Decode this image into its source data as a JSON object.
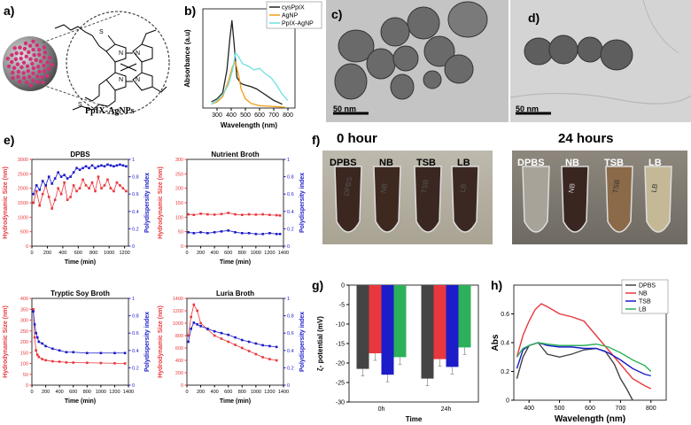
{
  "panel_labels": {
    "a": "a)",
    "b": "b)",
    "c": "c)",
    "d": "d)",
    "e": "e)",
    "f": "f)",
    "g": "g)",
    "h": "h)"
  },
  "panel_a": {
    "caption": "PpIX-AgNPs"
  },
  "panel_c": {
    "scale_bar": "50 nm"
  },
  "panel_d": {
    "scale_bar": "50 nm"
  },
  "panel_f": {
    "time_0": "0 hour",
    "time_24": "24 hours",
    "tubes": [
      "DPBS",
      "NB",
      "TSB",
      "LB"
    ],
    "tube_text_0h": [
      "DPBS",
      "NB",
      "TSB",
      "LB"
    ],
    "tube_text_24h": [
      "",
      "NB",
      "TSB",
      "LB"
    ]
  },
  "colors": {
    "red": "#e8383d",
    "blue": "#1c1cc8",
    "dark": "#444444",
    "green": "#2eb05a",
    "orange": "#f39c12",
    "cyan": "#6fe0e0",
    "black": "#222222"
  },
  "chart_data": [
    {
      "id": "b",
      "type": "line",
      "xlabel": "Wavelength (nm)",
      "ylabel": "Absorbance (a.u)",
      "xlim": [
        200,
        850
      ],
      "ylim": [
        0,
        1.3
      ],
      "x_ticks": [
        300,
        400,
        500,
        600,
        700,
        800
      ],
      "legend": [
        "cysPpIX",
        "AgNP",
        "PpIX-AgNP"
      ],
      "series": [
        {
          "name": "cysPpIX",
          "x": [
            260,
            300,
            340,
            370,
            390,
            405,
            420,
            440,
            470,
            500,
            540,
            580,
            620,
            660,
            700,
            760
          ],
          "y": [
            0.08,
            0.12,
            0.2,
            0.5,
            0.9,
            1.15,
            0.85,
            0.4,
            0.32,
            0.3,
            0.28,
            0.25,
            0.2,
            0.15,
            0.1,
            0.05
          ]
        },
        {
          "name": "AgNP",
          "x": [
            260,
            300,
            340,
            380,
            410,
            430,
            450,
            470,
            500,
            540,
            600,
            700,
            780
          ],
          "y": [
            0.05,
            0.08,
            0.15,
            0.35,
            0.55,
            0.6,
            0.45,
            0.25,
            0.12,
            0.06,
            0.03,
            0.02,
            0.01
          ]
        },
        {
          "name": "PpIX-AgNP",
          "x": [
            260,
            300,
            340,
            380,
            410,
            430,
            450,
            480,
            520,
            560,
            600,
            640,
            680,
            720,
            760,
            800
          ],
          "y": [
            0.05,
            0.1,
            0.18,
            0.3,
            0.5,
            0.72,
            0.68,
            0.58,
            0.55,
            0.5,
            0.52,
            0.45,
            0.4,
            0.3,
            0.18,
            0.1
          ]
        }
      ]
    },
    {
      "id": "e1",
      "type": "scatter",
      "title": "DPBS",
      "xlabel": "Time (min)",
      "ylabel_left": "Hydrodynamic Size (nm)",
      "ylabel_right": "Polydispersity index",
      "xlim": [
        0,
        1250
      ],
      "ylim_left": [
        0,
        3000
      ],
      "ylim_right": [
        0,
        1.0
      ],
      "x_ticks": [
        0,
        200,
        400,
        600,
        800,
        1000,
        1200
      ],
      "y_ticks_left": [
        0,
        500,
        1000,
        1500,
        2000,
        2500,
        3000
      ],
      "y_ticks_right": [
        0.0,
        0.2,
        0.4,
        0.6,
        0.8,
        1.0
      ],
      "series": [
        {
          "name": "Hydrodynamic Size",
          "axis": "left",
          "x": [
            20,
            60,
            100,
            140,
            180,
            220,
            260,
            300,
            340,
            380,
            420,
            460,
            500,
            540,
            580,
            620,
            660,
            700,
            740,
            780,
            820,
            860,
            900,
            940,
            980,
            1020,
            1060,
            1100,
            1140,
            1180,
            1220
          ],
          "y": [
            1500,
            1900,
            1400,
            1800,
            2100,
            1700,
            1300,
            1600,
            2000,
            1800,
            2200,
            1600,
            1700,
            2100,
            1900,
            2000,
            2300,
            2100,
            2000,
            2200,
            1900,
            2400,
            2000,
            2100,
            2300,
            2000,
            1900,
            2200,
            2100,
            2000,
            1900
          ]
        },
        {
          "name": "Polydispersity index",
          "axis": "right",
          "x": [
            20,
            60,
            100,
            140,
            180,
            220,
            260,
            300,
            340,
            380,
            420,
            460,
            500,
            540,
            580,
            620,
            660,
            700,
            740,
            780,
            820,
            860,
            900,
            940,
            980,
            1020,
            1060,
            1100,
            1140,
            1180,
            1220
          ],
          "y": [
            0.6,
            0.7,
            0.65,
            0.75,
            0.7,
            0.8,
            0.72,
            0.78,
            0.85,
            0.8,
            0.82,
            0.78,
            0.8,
            0.85,
            0.9,
            0.88,
            0.9,
            0.92,
            0.9,
            0.93,
            0.9,
            0.92,
            0.93,
            0.92,
            0.94,
            0.93,
            0.92,
            0.93,
            0.94,
            0.93,
            0.92
          ]
        }
      ]
    },
    {
      "id": "e2",
      "type": "scatter",
      "title": "Nutrient Broth",
      "xlabel": "Time (min)",
      "ylabel_left": "Hydrodynamic Size (nm)",
      "ylabel_right": "Polydispersity index",
      "xlim": [
        0,
        1400
      ],
      "ylim_left": [
        0,
        300
      ],
      "ylim_right": [
        0,
        1.0
      ],
      "x_ticks": [
        0,
        200,
        400,
        600,
        800,
        1000,
        1200,
        1400
      ],
      "y_ticks_left": [
        0,
        50,
        100,
        150,
        200,
        250,
        300
      ],
      "y_ticks_right": [
        0.0,
        0.2,
        0.4,
        0.6,
        0.8,
        1.0
      ],
      "series": [
        {
          "name": "Hydrodynamic Size",
          "axis": "left",
          "x": [
            20,
            100,
            200,
            300,
            400,
            500,
            600,
            700,
            800,
            900,
            1000,
            1100,
            1200,
            1300,
            1350
          ],
          "y": [
            110,
            108,
            112,
            110,
            109,
            111,
            115,
            110,
            108,
            110,
            109,
            110,
            108,
            107,
            106
          ]
        },
        {
          "name": "Polydispersity index",
          "axis": "right",
          "x": [
            20,
            100,
            200,
            300,
            400,
            500,
            600,
            700,
            800,
            900,
            1000,
            1100,
            1200,
            1300,
            1350
          ],
          "y": [
            0.16,
            0.15,
            0.16,
            0.15,
            0.16,
            0.17,
            0.18,
            0.16,
            0.15,
            0.15,
            0.14,
            0.14,
            0.15,
            0.14,
            0.14
          ]
        }
      ]
    },
    {
      "id": "e3",
      "type": "scatter",
      "title": "Tryptic Soy Broth",
      "xlabel": "Time (min)",
      "ylabel_left": "Hydrodynamic Size (nm)",
      "ylabel_right": "Polydispersity index",
      "xlim": [
        0,
        1400
      ],
      "ylim_left": [
        0,
        400
      ],
      "ylim_right": [
        0,
        1.0
      ],
      "x_ticks": [
        0,
        200,
        400,
        600,
        800,
        1000,
        1200,
        1400
      ],
      "y_ticks_left": [
        0,
        50,
        100,
        150,
        200,
        250,
        300,
        350,
        400
      ],
      "y_ticks_right": [
        0.0,
        0.2,
        0.4,
        0.6,
        0.8,
        1.0
      ],
      "series": [
        {
          "name": "Hydrodynamic Size",
          "axis": "left",
          "x": [
            20,
            40,
            60,
            80,
            100,
            150,
            200,
            300,
            400,
            500,
            600,
            800,
            1000,
            1200,
            1350
          ],
          "y": [
            350,
            220,
            160,
            140,
            130,
            120,
            115,
            110,
            108,
            105,
            104,
            103,
            102,
            101,
            100
          ]
        },
        {
          "name": "Polydispersity index",
          "axis": "right",
          "x": [
            20,
            40,
            60,
            80,
            100,
            150,
            200,
            300,
            400,
            500,
            600,
            800,
            1000,
            1200,
            1350
          ],
          "y": [
            0.85,
            0.7,
            0.6,
            0.55,
            0.5,
            0.48,
            0.45,
            0.42,
            0.4,
            0.38,
            0.38,
            0.37,
            0.37,
            0.37,
            0.37
          ]
        }
      ]
    },
    {
      "id": "e4",
      "type": "scatter",
      "title": "Luria Broth",
      "xlabel": "Time (min)",
      "ylabel_left": "Hydrodynamic Size (nm)",
      "ylabel_right": "Polydispersity index",
      "xlim": [
        0,
        1400
      ],
      "ylim_left": [
        0,
        1400
      ],
      "ylim_right": [
        0,
        1.0
      ],
      "x_ticks": [
        0,
        200,
        400,
        600,
        800,
        1000,
        1200,
        1400
      ],
      "y_ticks_left": [
        0,
        200,
        400,
        600,
        800,
        1000,
        1200,
        1400
      ],
      "y_ticks_right": [
        0.0,
        0.2,
        0.4,
        0.6,
        0.8,
        1.0
      ],
      "series": [
        {
          "name": "Hydrodynamic Size",
          "axis": "left",
          "x": [
            20,
            60,
            100,
            150,
            200,
            300,
            400,
            500,
            600,
            700,
            800,
            900,
            1000,
            1100,
            1200,
            1300
          ],
          "y": [
            800,
            1100,
            1300,
            1200,
            1000,
            900,
            800,
            750,
            700,
            650,
            600,
            550,
            500,
            450,
            420,
            400
          ]
        },
        {
          "name": "Polydispersity index",
          "axis": "right",
          "x": [
            20,
            60,
            100,
            150,
            200,
            300,
            400,
            500,
            600,
            700,
            800,
            900,
            1000,
            1100,
            1200,
            1300
          ],
          "y": [
            0.5,
            0.65,
            0.72,
            0.7,
            0.68,
            0.65,
            0.62,
            0.6,
            0.58,
            0.55,
            0.52,
            0.5,
            0.48,
            0.46,
            0.45,
            0.44
          ]
        }
      ]
    },
    {
      "id": "g",
      "type": "bar",
      "xlabel": "Time",
      "ylabel": "ζ- potential (mV)",
      "categories": [
        "0h",
        "24h"
      ],
      "ylim": [
        -30,
        0
      ],
      "y_ticks": [
        0,
        -5,
        -10,
        -15,
        -20,
        -25,
        -30
      ],
      "series": [
        {
          "name": "DPBS",
          "values": [
            -21.5,
            -24
          ]
        },
        {
          "name": "NB",
          "values": [
            -17.5,
            -19
          ]
        },
        {
          "name": "TSB",
          "values": [
            -23,
            -21
          ]
        },
        {
          "name": "LB",
          "values": [
            -18.5,
            -16
          ]
        }
      ]
    },
    {
      "id": "h",
      "type": "line",
      "xlabel": "Wavelength (nm)",
      "ylabel": "Abs",
      "xlim": [
        350,
        850
      ],
      "ylim": [
        0,
        0.8
      ],
      "x_ticks": [
        400,
        500,
        600,
        700,
        800
      ],
      "y_ticks": [
        0.0,
        0.2,
        0.4,
        0.6
      ],
      "legend": [
        "DPBS",
        "NB",
        "TSB",
        "LB"
      ],
      "series": [
        {
          "name": "DPBS",
          "x": [
            360,
            380,
            400,
            430,
            460,
            500,
            540,
            580,
            620,
            650,
            680,
            700,
            720,
            740
          ],
          "y": [
            0.15,
            0.3,
            0.38,
            0.4,
            0.32,
            0.3,
            0.32,
            0.35,
            0.36,
            0.34,
            0.25,
            0.15,
            0.08,
            0.0
          ]
        },
        {
          "name": "NB",
          "x": [
            360,
            380,
            400,
            420,
            440,
            460,
            500,
            540,
            580,
            620,
            660,
            700,
            740,
            780,
            800
          ],
          "y": [
            0.3,
            0.45,
            0.55,
            0.63,
            0.67,
            0.65,
            0.6,
            0.58,
            0.55,
            0.45,
            0.35,
            0.25,
            0.15,
            0.1,
            0.08
          ]
        },
        {
          "name": "TSB",
          "x": [
            360,
            380,
            400,
            430,
            460,
            500,
            540,
            580,
            620,
            660,
            700,
            740,
            780,
            800
          ],
          "y": [
            0.22,
            0.35,
            0.38,
            0.4,
            0.38,
            0.37,
            0.37,
            0.36,
            0.36,
            0.33,
            0.28,
            0.22,
            0.18,
            0.17
          ]
        },
        {
          "name": "LB",
          "x": [
            360,
            380,
            400,
            430,
            460,
            500,
            540,
            580,
            620,
            660,
            700,
            740,
            780,
            800
          ],
          "y": [
            0.3,
            0.36,
            0.38,
            0.4,
            0.39,
            0.38,
            0.38,
            0.38,
            0.39,
            0.37,
            0.33,
            0.28,
            0.24,
            0.2
          ]
        }
      ]
    }
  ]
}
